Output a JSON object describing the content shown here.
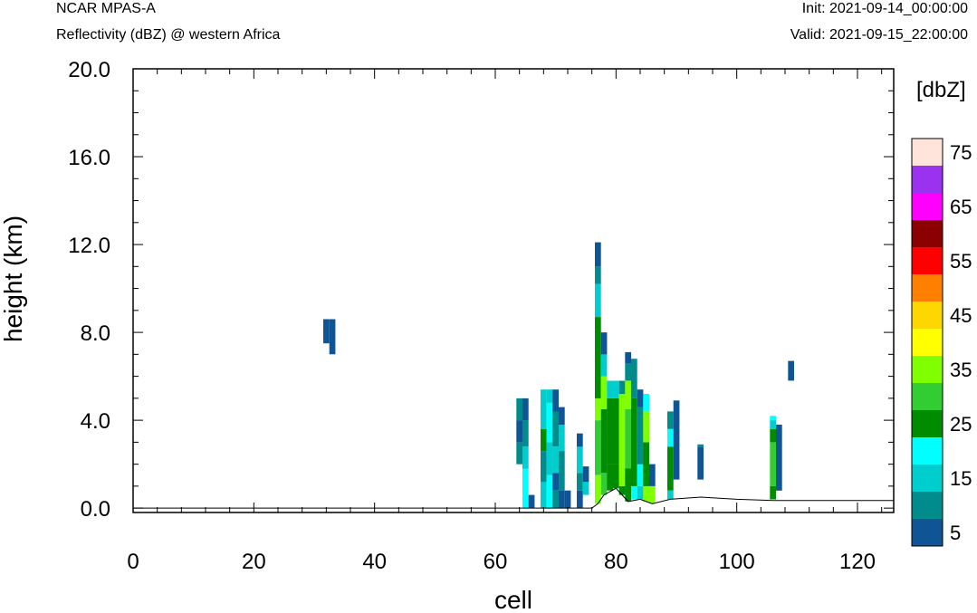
{
  "header": {
    "model": "NCAR MPAS-A",
    "field": "Reflectivity (dBZ) @ western Africa",
    "init": "Init: 2021-09-14_00:00:00",
    "valid": "Valid: 2021-09-15_22:00:00"
  },
  "chart_data": {
    "type": "heatmap",
    "title": "Reflectivity (dBZ) @ western Africa",
    "xlabel": "cell",
    "ylabel": "height (km)",
    "xlim": [
      0,
      126
    ],
    "ylim": [
      -0.2,
      20
    ],
    "xticks": [
      "0",
      "20",
      "40",
      "60",
      "80",
      "100",
      "120"
    ],
    "yticks": [
      "0.0",
      "4.0",
      "8.0",
      "12.0",
      "16.0",
      "20.0"
    ],
    "colorbar": {
      "units": "[dbZ]",
      "labels": [
        "5",
        "15",
        "25",
        "35",
        "45",
        "55",
        "65",
        "75"
      ],
      "colors": [
        "#0f5596",
        "#008c8c",
        "#00cdcd",
        "#00ffff",
        "#008c00",
        "#32cd32",
        "#7fff00",
        "#ffff00",
        "#ffd700",
        "#ff8000",
        "#ff0000",
        "#8b0000",
        "#ff00ff",
        "#9a32f0",
        "#ffe4dc"
      ]
    },
    "terrain": [
      [
        0,
        0
      ],
      [
        76,
        0
      ],
      [
        77,
        0.2
      ],
      [
        78,
        0.6
      ],
      [
        80,
        0.9
      ],
      [
        82,
        0.3
      ],
      [
        84,
        0.4
      ],
      [
        85,
        0.3
      ],
      [
        86,
        0.2
      ],
      [
        89,
        0.4
      ],
      [
        94,
        0.5
      ],
      [
        100,
        0.4
      ],
      [
        106,
        0.35
      ],
      [
        110,
        0.35
      ],
      [
        126,
        0.35
      ]
    ],
    "columns": [
      {
        "x": 32,
        "segs": [
          [
            7.5,
            8.6,
            0
          ]
        ]
      },
      {
        "x": 33,
        "segs": [
          [
            7.0,
            8.6,
            0
          ]
        ]
      },
      {
        "x": 64,
        "segs": [
          [
            2.0,
            3.0,
            1
          ],
          [
            3.0,
            4.0,
            0
          ],
          [
            4.0,
            5.0,
            1
          ]
        ]
      },
      {
        "x": 65,
        "segs": [
          [
            0.0,
            1.8,
            3
          ],
          [
            1.8,
            2.8,
            2
          ],
          [
            2.8,
            4.0,
            1
          ],
          [
            4.0,
            5.0,
            0
          ]
        ]
      },
      {
        "x": 66,
        "segs": [
          [
            0.0,
            0.6,
            0
          ]
        ]
      },
      {
        "x": 68,
        "segs": [
          [
            0.0,
            1.2,
            2
          ],
          [
            1.2,
            2.6,
            1
          ],
          [
            2.6,
            3.6,
            4
          ],
          [
            3.6,
            5.4,
            2
          ]
        ]
      },
      {
        "x": 69,
        "segs": [
          [
            0.0,
            1.5,
            3
          ],
          [
            1.5,
            3.0,
            2
          ],
          [
            3.0,
            4.8,
            3
          ],
          [
            4.8,
            5.4,
            2
          ]
        ]
      },
      {
        "x": 70,
        "segs": [
          [
            0.0,
            0.8,
            1
          ],
          [
            0.8,
            1.6,
            0
          ],
          [
            1.6,
            2.8,
            2
          ],
          [
            2.8,
            4.4,
            1
          ],
          [
            4.4,
            5.4,
            0
          ]
        ]
      },
      {
        "x": 71,
        "segs": [
          [
            0.0,
            0.8,
            0
          ],
          [
            0.8,
            2.6,
            1
          ],
          [
            2.6,
            3.8,
            2
          ],
          [
            3.8,
            4.6,
            0
          ]
        ]
      },
      {
        "x": 72,
        "segs": [
          [
            0.0,
            0.8,
            0
          ]
        ]
      },
      {
        "x": 74,
        "segs": [
          [
            0.0,
            0.8,
            0
          ],
          [
            0.8,
            1.6,
            1
          ],
          [
            1.6,
            2.8,
            2
          ],
          [
            2.8,
            3.4,
            0
          ]
        ]
      },
      {
        "x": 75,
        "segs": [
          [
            0.6,
            1.2,
            2
          ],
          [
            1.2,
            1.9,
            0
          ]
        ]
      },
      {
        "x": 77,
        "segs": [
          [
            0.2,
            1.5,
            6
          ],
          [
            1.5,
            4.0,
            5
          ],
          [
            4.0,
            5.0,
            6
          ],
          [
            5.0,
            8.7,
            4
          ],
          [
            8.7,
            10.2,
            2
          ],
          [
            10.2,
            11.0,
            1
          ],
          [
            11.0,
            12.1,
            0
          ]
        ]
      },
      {
        "x": 78,
        "segs": [
          [
            0.6,
            1.6,
            5
          ],
          [
            1.6,
            4.5,
            4
          ],
          [
            4.5,
            6.0,
            6
          ],
          [
            6.0,
            7.0,
            2
          ],
          [
            7.0,
            8.0,
            0
          ]
        ]
      },
      {
        "x": 79,
        "segs": [
          [
            0.8,
            2.0,
            4
          ],
          [
            2.0,
            5.0,
            4
          ],
          [
            5.0,
            5.8,
            2
          ]
        ]
      },
      {
        "x": 80,
        "segs": [
          [
            0.9,
            2.0,
            4
          ],
          [
            2.0,
            5.0,
            4
          ],
          [
            5.0,
            5.8,
            2
          ]
        ]
      },
      {
        "x": 81,
        "segs": [
          [
            0.6,
            1.0,
            4
          ],
          [
            1.0,
            5.2,
            6
          ],
          [
            5.2,
            5.8,
            1
          ]
        ]
      },
      {
        "x": 82,
        "segs": [
          [
            0.3,
            1.8,
            4
          ],
          [
            1.8,
            4.5,
            5
          ],
          [
            4.5,
            5.8,
            6
          ],
          [
            5.8,
            6.6,
            1
          ],
          [
            6.6,
            7.1,
            0
          ]
        ]
      },
      {
        "x": 83,
        "segs": [
          [
            0.4,
            1.0,
            3
          ],
          [
            1.0,
            3.2,
            4
          ],
          [
            3.2,
            5.0,
            4
          ],
          [
            5.0,
            6.8,
            1
          ]
        ]
      },
      {
        "x": 84,
        "segs": [
          [
            0.4,
            1.0,
            2
          ],
          [
            1.0,
            2.0,
            3
          ],
          [
            2.0,
            4.6,
            1
          ],
          [
            4.6,
            5.4,
            0
          ]
        ]
      },
      {
        "x": 85,
        "segs": [
          [
            0.3,
            1.0,
            6
          ],
          [
            1.0,
            3.0,
            4
          ],
          [
            3.0,
            4.4,
            6
          ],
          [
            4.4,
            5.2,
            3
          ]
        ]
      },
      {
        "x": 86,
        "segs": [
          [
            0.2,
            1.0,
            6
          ],
          [
            1.0,
            2.0,
            0
          ]
        ]
      },
      {
        "x": 89,
        "segs": [
          [
            0.4,
            0.8,
            2
          ],
          [
            0.8,
            2.8,
            4
          ],
          [
            2.8,
            3.6,
            3
          ],
          [
            3.6,
            4.4,
            1
          ]
        ]
      },
      {
        "x": 90,
        "segs": [
          [
            1.3,
            3.8,
            0
          ],
          [
            3.8,
            4.9,
            0
          ]
        ]
      },
      {
        "x": 94,
        "segs": [
          [
            1.3,
            2.8,
            0
          ],
          [
            2.8,
            2.9,
            1
          ]
        ]
      },
      {
        "x": 106,
        "segs": [
          [
            0.4,
            1.0,
            4
          ],
          [
            1.0,
            3.0,
            5
          ],
          [
            3.0,
            3.6,
            4
          ],
          [
            3.6,
            4.0,
            2
          ],
          [
            4.0,
            4.2,
            3
          ]
        ]
      },
      {
        "x": 107,
        "segs": [
          [
            0.8,
            3.8,
            0
          ]
        ]
      },
      {
        "x": 109,
        "segs": [
          [
            5.8,
            6.7,
            0
          ]
        ]
      }
    ]
  }
}
